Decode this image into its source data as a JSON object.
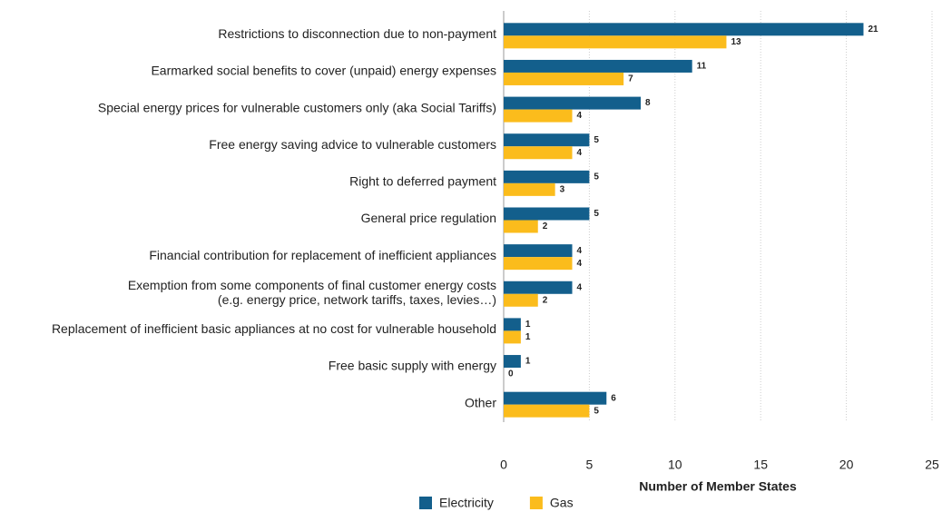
{
  "chart_data": {
    "type": "bar",
    "orientation": "horizontal",
    "x_label": "Number of Member States",
    "categories": [
      "Restrictions to disconnection due to non-payment",
      "Earmarked social benefits to cover (unpaid) energy expenses",
      "Special energy prices for vulnerable customers only (aka Social Tariffs)",
      "Free energy saving advice to vulnerable customers",
      "Right to deferred payment",
      "General price regulation",
      "Financial contribution for replacement of inefficient appliances",
      "Exemption from some components of final customer energy costs\n(e.g. energy price, network tariffs, taxes, levies…)",
      "Replacement of inefficient basic appliances at no cost for vulnerable household",
      "Free basic supply with energy",
      "Other"
    ],
    "series": [
      {
        "name": "Electricity",
        "color": "#135f8c",
        "values": [
          21,
          11,
          8,
          5,
          5,
          5,
          4,
          4,
          1,
          1,
          6
        ]
      },
      {
        "name": "Gas",
        "color": "#fbbc1c",
        "values": [
          13,
          7,
          4,
          4,
          3,
          2,
          4,
          2,
          1,
          0,
          5
        ]
      }
    ],
    "xlim": [
      0,
      25
    ],
    "xticks": [
      0,
      5,
      10,
      15,
      20,
      25
    ],
    "grid": true,
    "legend": "bottom"
  }
}
